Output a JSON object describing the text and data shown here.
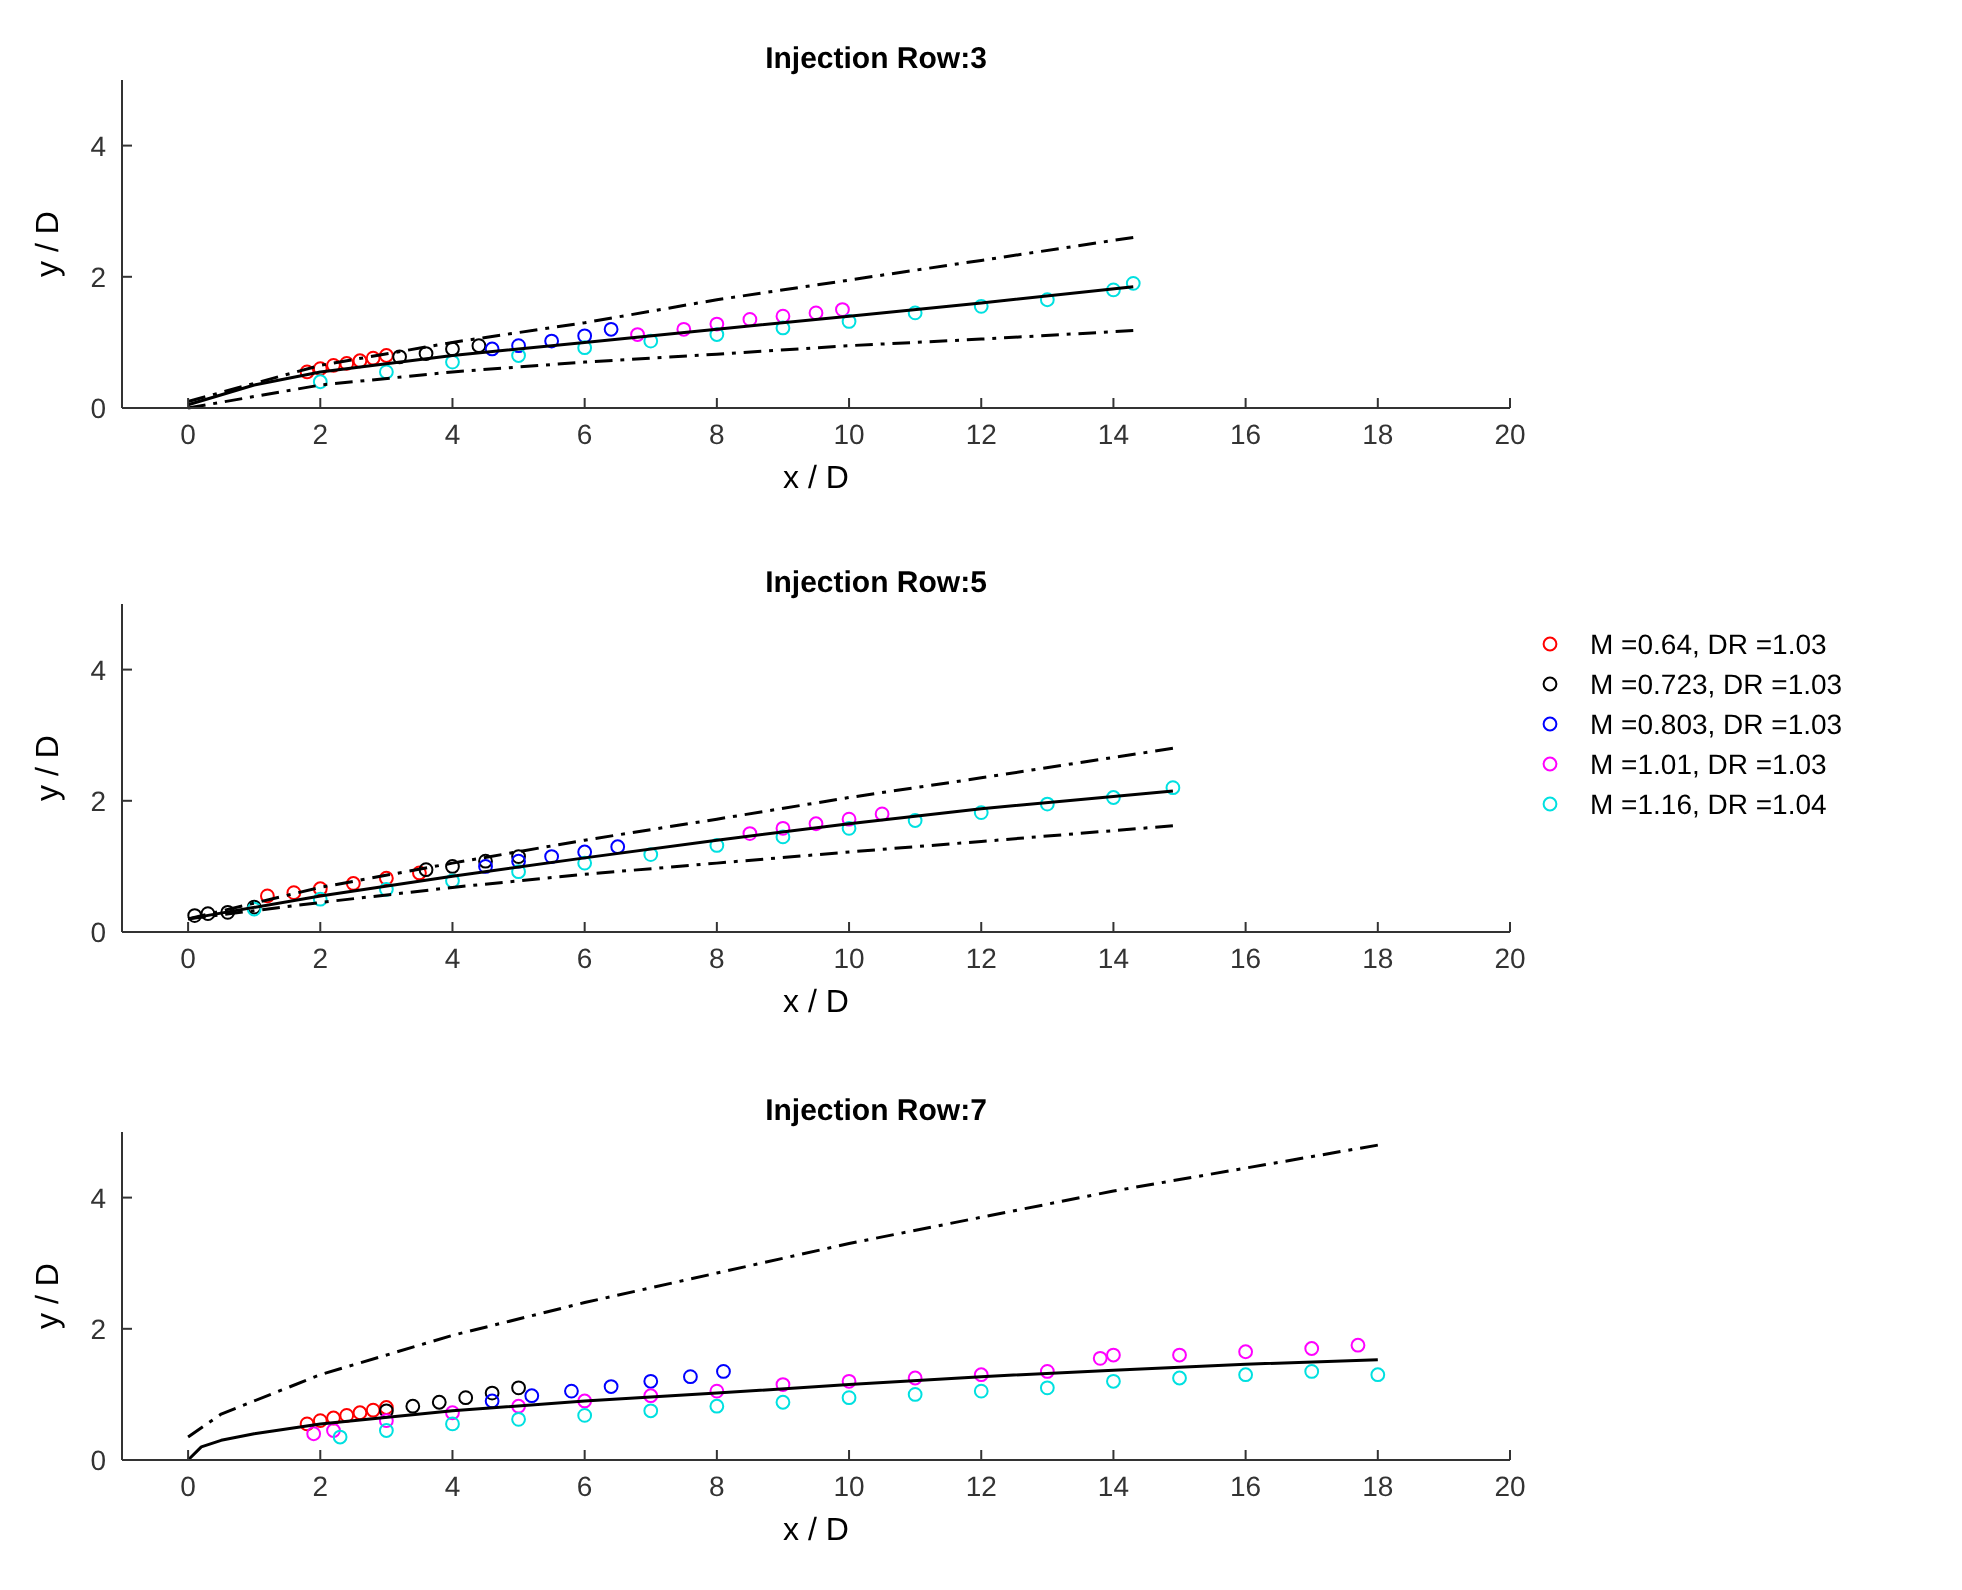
{
  "chart_data": [
    {
      "type": "scatter",
      "title": "Injection Row:3",
      "xlabel": "x / D",
      "ylabel": "y / D",
      "xlim": [
        -1,
        20
      ],
      "ylim": [
        0,
        5
      ],
      "xticks": [
        0,
        2,
        4,
        6,
        8,
        10,
        12,
        14,
        16,
        18,
        20
      ],
      "yticks": [
        0,
        2,
        4
      ],
      "grid": false,
      "legend": false,
      "series": [
        {
          "color": "#ff0000",
          "marker": "circle",
          "x": [
            1.8,
            2.0,
            2.2,
            2.4,
            2.6,
            2.8,
            3.0
          ],
          "values": [
            0.55,
            0.6,
            0.65,
            0.68,
            0.72,
            0.76,
            0.8
          ]
        },
        {
          "color": "#000000",
          "marker": "circle",
          "x": [
            3.2,
            3.6,
            4.0,
            4.4
          ],
          "values": [
            0.78,
            0.83,
            0.9,
            0.95
          ]
        },
        {
          "color": "#0000ff",
          "marker": "circle",
          "x": [
            4.6,
            5.0,
            5.5,
            6.0,
            6.4
          ],
          "values": [
            0.9,
            0.95,
            1.02,
            1.1,
            1.2
          ]
        },
        {
          "color": "#ff00ff",
          "marker": "circle",
          "x": [
            6.8,
            7.5,
            8.0,
            8.5,
            9.0,
            9.5,
            9.9
          ],
          "values": [
            1.12,
            1.2,
            1.28,
            1.35,
            1.4,
            1.45,
            1.5
          ]
        },
        {
          "color": "#00e0e0",
          "marker": "circle",
          "x": [
            2,
            3,
            4,
            5,
            6,
            7,
            8,
            9,
            10,
            11,
            12,
            13,
            14,
            14.3
          ],
          "values": [
            0.4,
            0.55,
            0.7,
            0.8,
            0.92,
            1.02,
            1.12,
            1.22,
            1.32,
            1.45,
            1.55,
            1.65,
            1.8,
            1.9
          ]
        },
        {
          "type": "line",
          "color": "#000000",
          "line_style": "solid",
          "x": [
            0,
            1,
            2,
            4,
            6,
            8,
            10,
            12,
            14.3
          ],
          "values": [
            0.05,
            0.35,
            0.55,
            0.8,
            1.0,
            1.2,
            1.4,
            1.6,
            1.85
          ]
        },
        {
          "type": "line",
          "color": "#000000",
          "line_style": "dashed",
          "x": [
            0,
            2,
            4,
            6,
            8,
            10,
            12,
            14.3
          ],
          "values": [
            0.1,
            0.65,
            1.0,
            1.3,
            1.65,
            1.95,
            2.25,
            2.6
          ]
        },
        {
          "type": "line",
          "color": "#000000",
          "line_style": "dashed",
          "x": [
            0,
            2,
            4,
            6,
            8,
            10,
            12,
            14.3
          ],
          "values": [
            0,
            0.35,
            0.55,
            0.7,
            0.82,
            0.95,
            1.05,
            1.18
          ]
        }
      ]
    },
    {
      "type": "scatter",
      "title": "Injection Row:5",
      "xlabel": "x / D",
      "ylabel": "y / D",
      "xlim": [
        -1,
        20
      ],
      "ylim": [
        0,
        5
      ],
      "xticks": [
        0,
        2,
        4,
        6,
        8,
        10,
        12,
        14,
        16,
        18,
        20
      ],
      "yticks": [
        0,
        2,
        4
      ],
      "grid": false,
      "legend": "right",
      "series": [
        {
          "name": "M =0.64, DR =1.03",
          "color": "#ff0000",
          "marker": "circle",
          "x": [
            1.2,
            1.6,
            2.0,
            2.5,
            3.0,
            3.5
          ],
          "values": [
            0.55,
            0.6,
            0.66,
            0.74,
            0.82,
            0.9
          ]
        },
        {
          "name": "M =0.723, DR =1.03",
          "color": "#000000",
          "marker": "circle",
          "x": [
            0.1,
            0.3,
            0.6,
            1.0,
            3.6,
            4.0,
            4.5,
            5.0
          ],
          "values": [
            0.25,
            0.28,
            0.3,
            0.38,
            0.95,
            1.0,
            1.08,
            1.15
          ]
        },
        {
          "name": "M =0.803, DR =1.03",
          "color": "#0000ff",
          "marker": "circle",
          "x": [
            4.5,
            5.0,
            5.5,
            6.0,
            6.5
          ],
          "values": [
            1.0,
            1.08,
            1.15,
            1.22,
            1.3
          ]
        },
        {
          "name": "M =1.01, DR =1.03",
          "color": "#ff00ff",
          "marker": "circle",
          "x": [
            8.5,
            9.0,
            9.5,
            10.0,
            10.5
          ],
          "values": [
            1.5,
            1.58,
            1.65,
            1.72,
            1.8
          ]
        },
        {
          "name": "M =1.16, DR =1.04",
          "color": "#00e0e0",
          "marker": "circle",
          "x": [
            1,
            2,
            3,
            4,
            5,
            6,
            7,
            8,
            9,
            10,
            11,
            12,
            13,
            14,
            14.9
          ],
          "values": [
            0.35,
            0.5,
            0.65,
            0.78,
            0.92,
            1.05,
            1.18,
            1.32,
            1.45,
            1.58,
            1.7,
            1.82,
            1.95,
            2.05,
            2.2
          ]
        },
        {
          "type": "line",
          "color": "#000000",
          "line_style": "solid",
          "x": [
            0,
            2,
            4,
            6,
            8,
            10,
            12,
            14.9
          ],
          "values": [
            0.2,
            0.55,
            0.85,
            1.13,
            1.4,
            1.65,
            1.88,
            2.15
          ]
        },
        {
          "type": "line",
          "color": "#000000",
          "line_style": "dashed",
          "x": [
            0,
            2,
            4,
            6,
            8,
            10,
            12,
            14.9
          ],
          "values": [
            0.2,
            0.68,
            1.05,
            1.4,
            1.72,
            2.05,
            2.35,
            2.8
          ]
        },
        {
          "type": "line",
          "color": "#000000",
          "line_style": "dashed",
          "x": [
            0,
            2,
            4,
            6,
            8,
            10,
            12,
            14.9
          ],
          "values": [
            0.2,
            0.45,
            0.68,
            0.88,
            1.05,
            1.22,
            1.38,
            1.62
          ]
        }
      ]
    },
    {
      "type": "scatter",
      "title": "Injection Row:7",
      "xlabel": "x / D",
      "ylabel": "y / D",
      "xlim": [
        -1,
        20
      ],
      "ylim": [
        0,
        5
      ],
      "xticks": [
        0,
        2,
        4,
        6,
        8,
        10,
        12,
        14,
        16,
        18,
        20
      ],
      "yticks": [
        0,
        2,
        4
      ],
      "grid": false,
      "legend": false,
      "series": [
        {
          "color": "#ff0000",
          "marker": "circle",
          "x": [
            1.8,
            2.0,
            2.2,
            2.4,
            2.6,
            2.8,
            3.0
          ],
          "values": [
            0.55,
            0.6,
            0.64,
            0.68,
            0.72,
            0.76,
            0.8
          ]
        },
        {
          "color": "#000000",
          "marker": "circle",
          "x": [
            3.0,
            3.4,
            3.8,
            4.2,
            4.6,
            5.0
          ],
          "values": [
            0.75,
            0.82,
            0.88,
            0.95,
            1.02,
            1.1
          ]
        },
        {
          "color": "#0000ff",
          "marker": "circle",
          "x": [
            4.6,
            5.2,
            5.8,
            6.4,
            7.0,
            7.6,
            8.1
          ],
          "values": [
            0.9,
            0.98,
            1.05,
            1.12,
            1.2,
            1.27,
            1.35
          ]
        },
        {
          "color": "#ff00ff",
          "marker": "circle",
          "x": [
            1.9,
            2.2,
            3,
            4,
            5,
            6,
            7,
            8,
            9,
            10,
            11,
            12,
            13,
            13.8,
            14,
            15,
            16,
            17,
            17.7
          ],
          "values": [
            0.4,
            0.45,
            0.6,
            0.72,
            0.82,
            0.9,
            0.98,
            1.05,
            1.15,
            1.2,
            1.25,
            1.3,
            1.35,
            1.55,
            1.6,
            1.6,
            1.65,
            1.7,
            1.75
          ]
        },
        {
          "color": "#00e0e0",
          "marker": "circle",
          "x": [
            2.3,
            3,
            4,
            5,
            6,
            7,
            8,
            9,
            10,
            11,
            12,
            13,
            14,
            15,
            16,
            17,
            18
          ],
          "values": [
            0.35,
            0.45,
            0.55,
            0.62,
            0.68,
            0.75,
            0.82,
            0.88,
            0.95,
            1.0,
            1.05,
            1.1,
            1.2,
            1.25,
            1.3,
            1.35,
            1.3
          ]
        },
        {
          "type": "line",
          "color": "#000000",
          "line_style": "solid",
          "x": [
            0,
            0.2,
            0.5,
            1,
            2,
            4,
            6,
            8,
            10,
            12,
            14,
            16,
            18
          ],
          "values": [
            0,
            0.2,
            0.3,
            0.4,
            0.55,
            0.75,
            0.9,
            1.02,
            1.15,
            1.27,
            1.37,
            1.46,
            1.53
          ]
        },
        {
          "type": "line",
          "color": "#000000",
          "line_style": "dashed",
          "x": [
            0,
            0.5,
            1,
            2,
            4,
            6,
            8,
            10,
            12,
            14,
            16,
            18
          ],
          "values": [
            0.35,
            0.7,
            0.9,
            1.3,
            1.9,
            2.4,
            2.85,
            3.3,
            3.7,
            4.1,
            4.45,
            4.8
          ]
        }
      ]
    }
  ]
}
